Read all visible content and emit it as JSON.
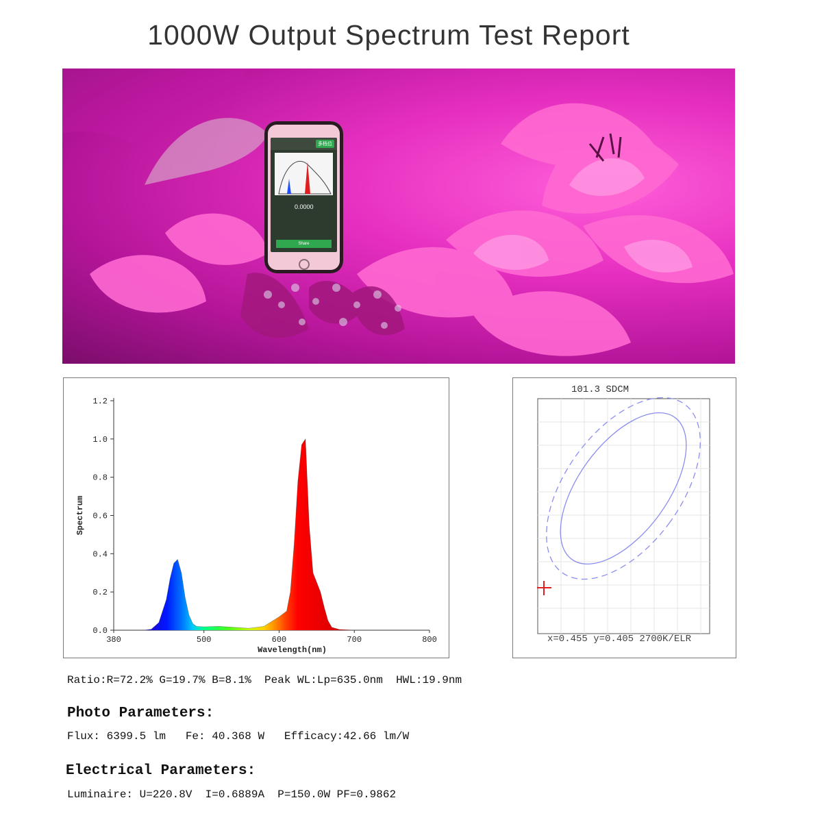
{
  "title": "1000W Output Spectrum Test Report",
  "phone": {
    "badge": "多档位",
    "value": "0.0000",
    "share": "Share"
  },
  "sdcm_label": "101.3 SDCM",
  "cie_readout": "x=0.455 y=0.405 2700K/ELR",
  "ratio_line": "Ratio:R=72.2% G=19.7% B=8.1%  Peak WL:Lp=635.0nm  HWL:19.9nm",
  "photo_heading": "Photo Parameters:",
  "photo_line": "Flux: 6399.5 lm   Fe: 40.368 W   Efficacy:42.66 lm/W",
  "electrical_heading": "Electrical Parameters:",
  "electrical_line": "Luminaire: U=220.8V  I=0.6889A  P=150.0W PF=0.9862",
  "chart_data": [
    {
      "type": "area",
      "xlabel": "Wavelength(nm)",
      "ylabel": "Spectrum",
      "xlim": [
        380,
        800
      ],
      "ylim": [
        0,
        1.2
      ],
      "x_ticks": [
        380,
        500,
        600,
        700,
        800
      ],
      "y_ticks": [
        "0.0",
        "0.2",
        "0.4",
        "0.6",
        "0.8",
        "1.0",
        "1.2"
      ],
      "x": [
        380,
        420,
        430,
        440,
        450,
        455,
        460,
        465,
        470,
        475,
        480,
        485,
        490,
        500,
        520,
        540,
        560,
        580,
        590,
        600,
        610,
        615,
        620,
        625,
        630,
        635,
        640,
        645,
        650,
        655,
        660,
        665,
        670,
        680,
        700,
        800
      ],
      "y": [
        0.0,
        0.0,
        0.005,
        0.04,
        0.16,
        0.27,
        0.35,
        0.37,
        0.3,
        0.17,
        0.08,
        0.035,
        0.02,
        0.018,
        0.02,
        0.015,
        0.01,
        0.02,
        0.045,
        0.07,
        0.1,
        0.2,
        0.45,
        0.78,
        0.97,
        1.0,
        0.55,
        0.3,
        0.25,
        0.2,
        0.12,
        0.05,
        0.015,
        0.004,
        0.0,
        0.0
      ]
    },
    {
      "type": "scatter",
      "title": "101.3 SDCM",
      "annotation": "x=0.455 y=0.405 2700K/ELR",
      "colors": {
        "ellipse": "#8a8df0",
        "marker": "#e02020"
      }
    }
  ]
}
